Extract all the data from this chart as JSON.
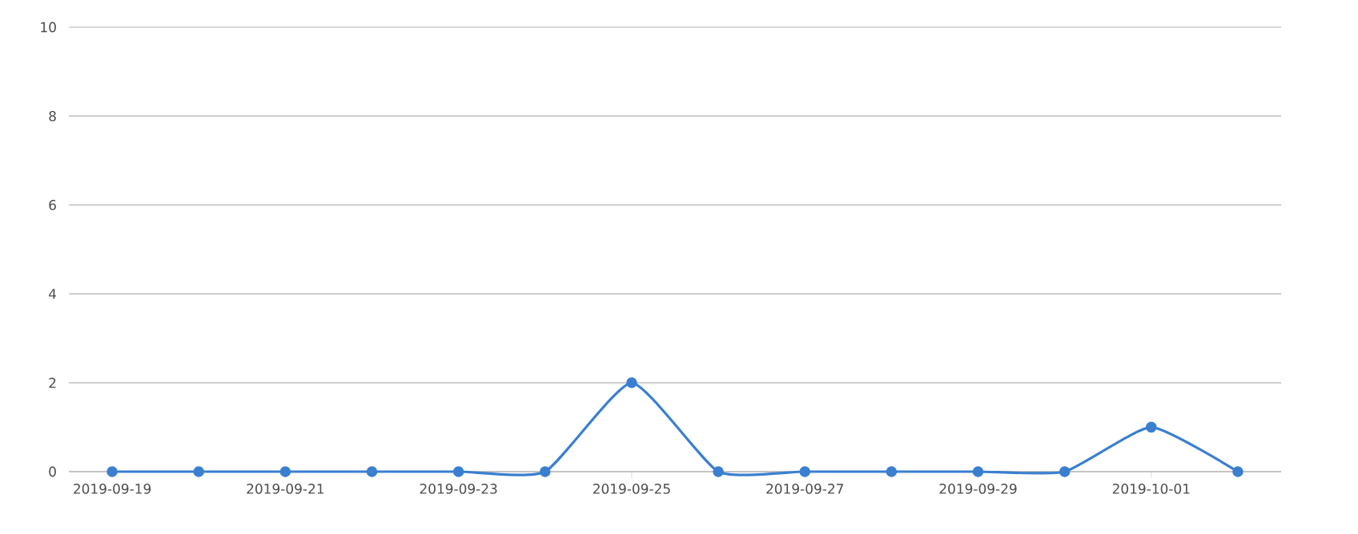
{
  "chart_data": {
    "type": "line",
    "categories": [
      "2019-09-19",
      null,
      "2019-09-21",
      null,
      "2019-09-23",
      null,
      "2019-09-25",
      null,
      "2019-09-27",
      null,
      "2019-09-29",
      null,
      "2019-10-01",
      null
    ],
    "series": [
      {
        "color": "#3a7fd0",
        "values": [
          0,
          0,
          0,
          0,
          0,
          0,
          2,
          0,
          0,
          0,
          0,
          0,
          1,
          0
        ]
      }
    ],
    "ylim": [
      0,
      10
    ],
    "yticks": [
      0,
      2,
      4,
      6,
      8,
      10
    ],
    "grid": "y",
    "marker": "circle",
    "line_style": "solid"
  }
}
